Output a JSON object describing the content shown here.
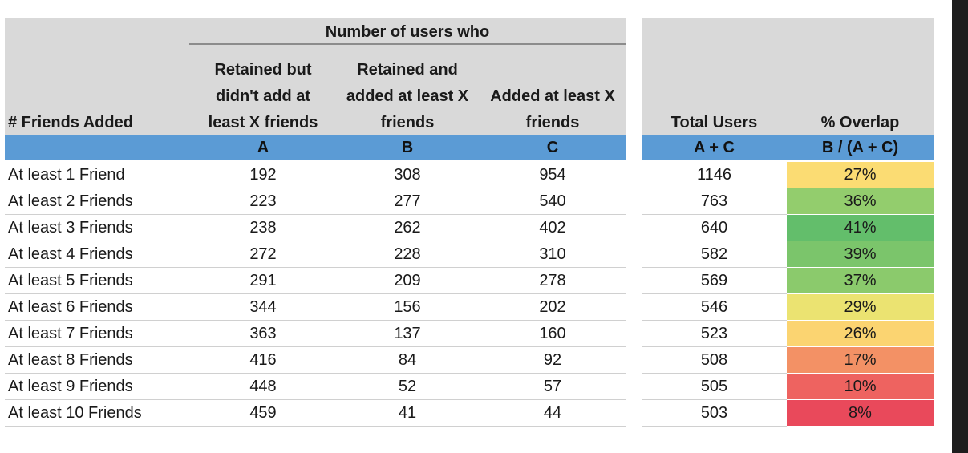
{
  "chart_data": {
    "type": "table",
    "group_header": "Number of users who",
    "columns": [
      {
        "header_lines": [
          "# Friends Added"
        ],
        "letter": ""
      },
      {
        "header_lines": [
          "Retained but",
          "didn't add at",
          "least X friends"
        ],
        "letter": "A"
      },
      {
        "header_lines": [
          "Retained and",
          "added at least X",
          "friends"
        ],
        "letter": "B"
      },
      {
        "header_lines": [
          "Added at least X",
          "friends"
        ],
        "letter": "C"
      },
      {
        "header_lines": [
          "Total Users"
        ],
        "letter": "A + C"
      },
      {
        "header_lines": [
          "% Overlap"
        ],
        "letter": "B / (A + C)"
      }
    ],
    "rows": [
      {
        "label": "At least 1 Friend",
        "a": "192",
        "b": "308",
        "c": "954",
        "total": "1146",
        "overlap": "27%",
        "overlap_color": "#fbdc73"
      },
      {
        "label": "At least 2 Friends",
        "a": "223",
        "b": "277",
        "c": "540",
        "total": "763",
        "overlap": "36%",
        "overlap_color": "#93cd6d"
      },
      {
        "label": "At least 3 Friends",
        "a": "238",
        "b": "262",
        "c": "402",
        "total": "640",
        "overlap": "41%",
        "overlap_color": "#63be6b"
      },
      {
        "label": "At least 4 Friends",
        "a": "272",
        "b": "228",
        "c": "310",
        "total": "582",
        "overlap": "39%",
        "overlap_color": "#7bc56b"
      },
      {
        "label": "At least 5 Friends",
        "a": "291",
        "b": "209",
        "c": "278",
        "total": "569",
        "overlap": "37%",
        "overlap_color": "#8bca6c"
      },
      {
        "label": "At least 6 Friends",
        "a": "344",
        "b": "156",
        "c": "202",
        "total": "546",
        "overlap": "29%",
        "overlap_color": "#ebe371"
      },
      {
        "label": "At least 7 Friends",
        "a": "363",
        "b": "137",
        "c": "160",
        "total": "523",
        "overlap": "26%",
        "overlap_color": "#fbd471"
      },
      {
        "label": "At least 8 Friends",
        "a": "416",
        "b": "84",
        "c": "92",
        "total": "508",
        "overlap": "17%",
        "overlap_color": "#f39165"
      },
      {
        "label": "At least 9 Friends",
        "a": "448",
        "b": "52",
        "c": "57",
        "total": "505",
        "overlap": "10%",
        "overlap_color": "#ee6360"
      },
      {
        "label": "At least 10 Friends",
        "a": "459",
        "b": "41",
        "c": "44",
        "total": "503",
        "overlap": "8%",
        "overlap_color": "#e9495b"
      }
    ]
  },
  "colors": {
    "header_gray": "#d9d9d9",
    "letter_band_blue": "#5b9bd5"
  }
}
